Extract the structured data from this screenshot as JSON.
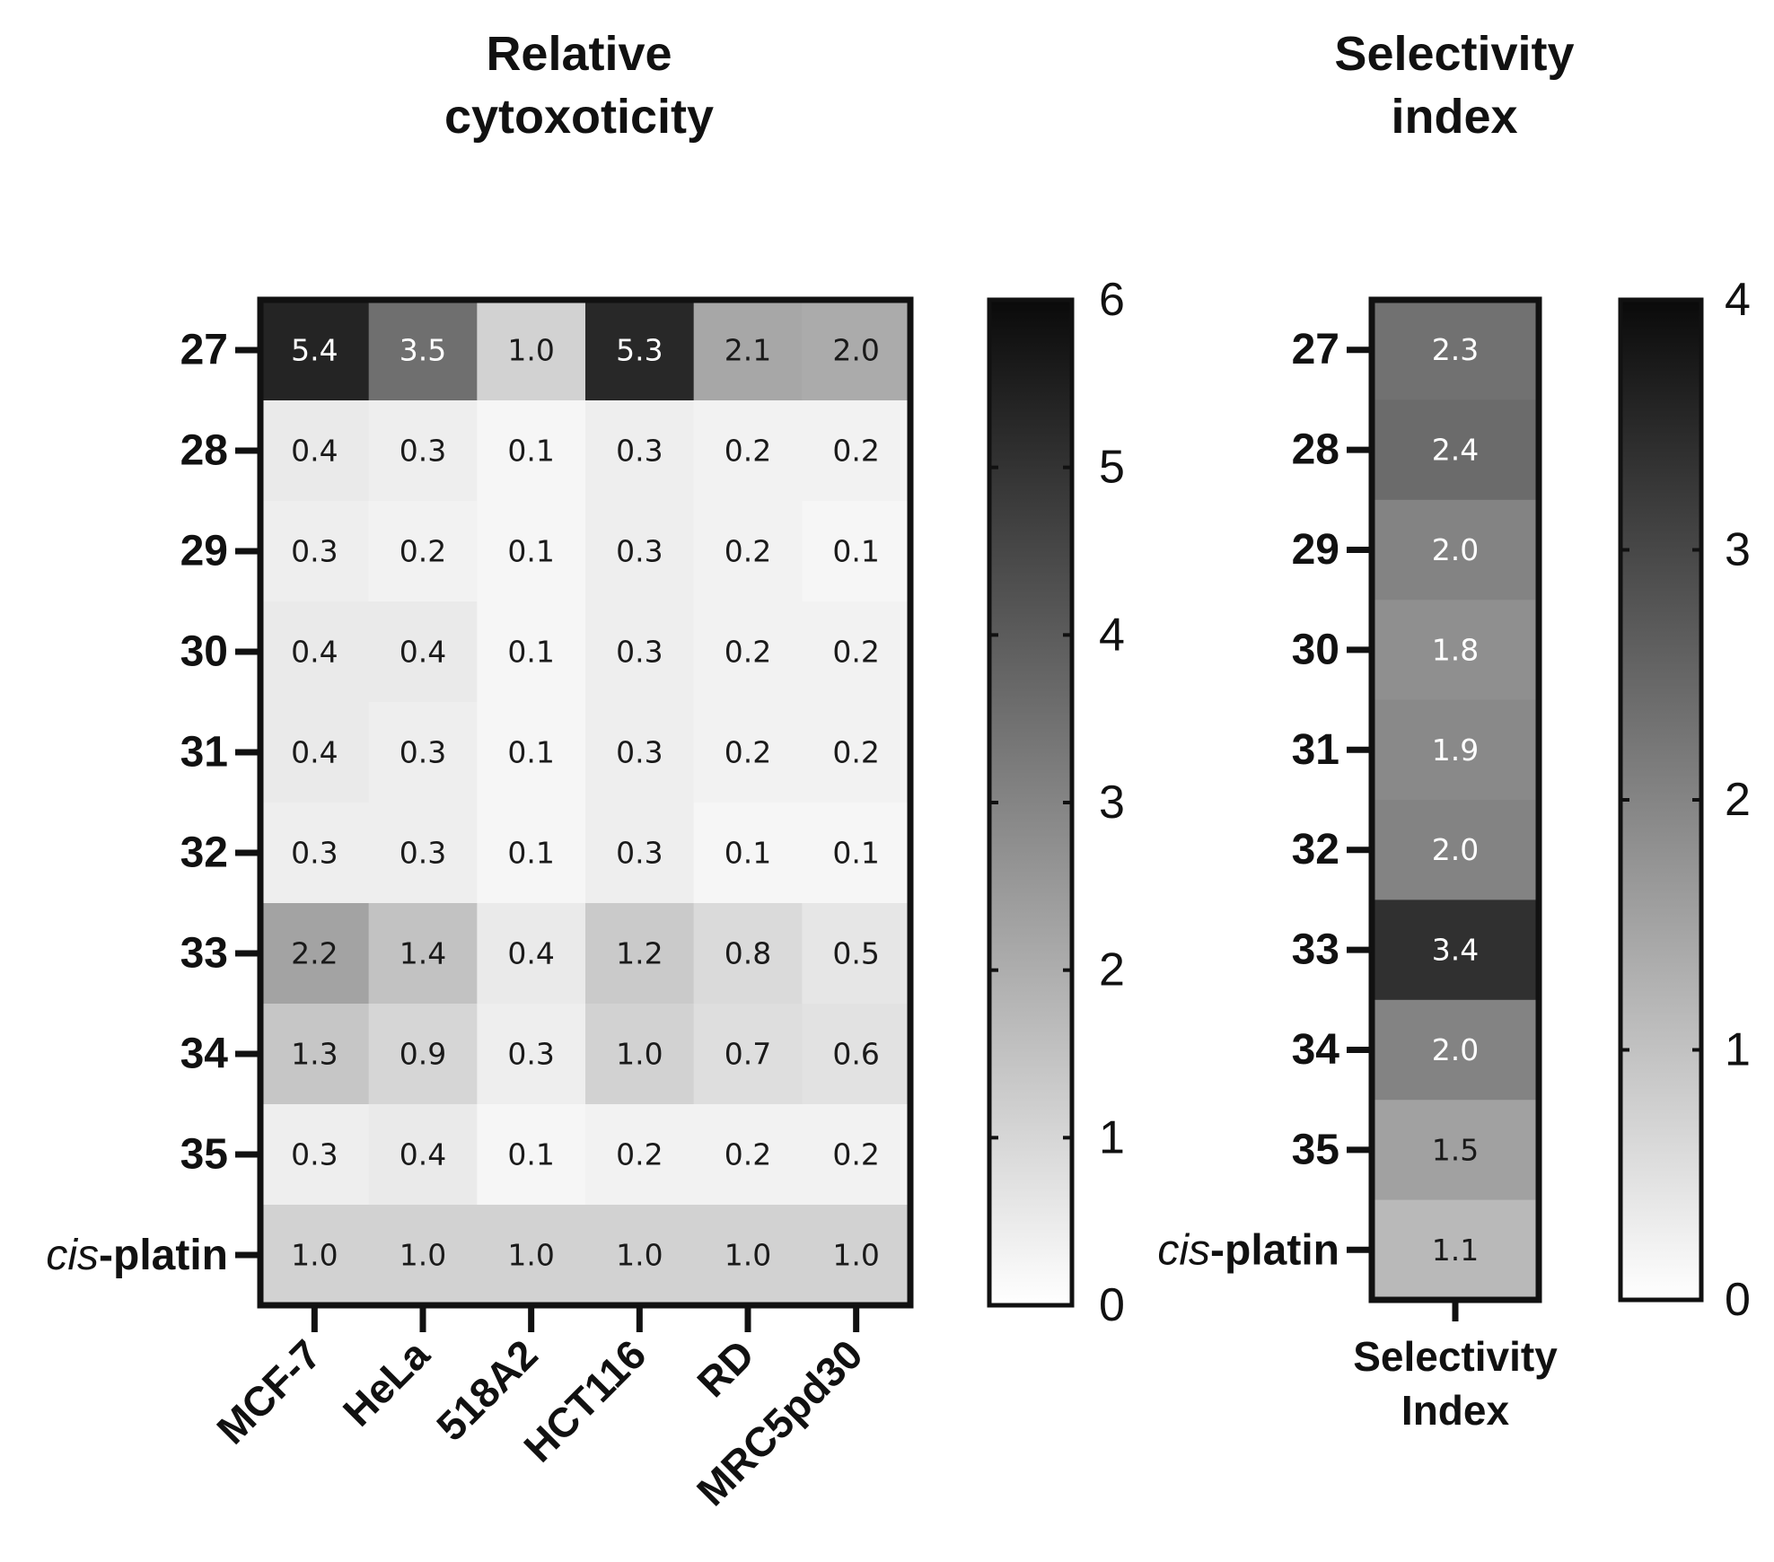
{
  "chart_data": [
    {
      "type": "heatmap",
      "title_lines": [
        "Relative",
        "cytoxoticity"
      ],
      "rows": [
        "27",
        "28",
        "29",
        "30",
        "31",
        "32",
        "33",
        "34",
        "35",
        "cis-platin"
      ],
      "row_label_cis_italic": "cis",
      "row_label_cis_rest": "-platin",
      "columns": [
        "MCF-7",
        "HeLa",
        "518A2",
        "HCT116",
        "RD",
        "MRC5pd30"
      ],
      "values": [
        [
          5.4,
          3.5,
          1.0,
          5.3,
          2.1,
          2.0
        ],
        [
          0.4,
          0.3,
          0.1,
          0.3,
          0.2,
          0.2
        ],
        [
          0.3,
          0.2,
          0.1,
          0.3,
          0.2,
          0.1
        ],
        [
          0.4,
          0.4,
          0.1,
          0.3,
          0.2,
          0.2
        ],
        [
          0.4,
          0.3,
          0.1,
          0.3,
          0.2,
          0.2
        ],
        [
          0.3,
          0.3,
          0.1,
          0.3,
          0.1,
          0.1
        ],
        [
          2.2,
          1.4,
          0.4,
          1.2,
          0.8,
          0.5
        ],
        [
          1.3,
          0.9,
          0.3,
          1.0,
          0.7,
          0.6
        ],
        [
          0.3,
          0.4,
          0.1,
          0.2,
          0.2,
          0.2
        ],
        [
          1.0,
          1.0,
          1.0,
          1.0,
          1.0,
          1.0
        ]
      ],
      "colorbar": {
        "min": 0,
        "max": 6,
        "ticks": [
          "0",
          "1",
          "2",
          "3",
          "4",
          "5",
          "6"
        ],
        "low_color": "#ffffff",
        "high_color": "#0a0a0a"
      }
    },
    {
      "type": "heatmap",
      "title_lines": [
        "Selectivity",
        "index"
      ],
      "rows": [
        "27",
        "28",
        "29",
        "30",
        "31",
        "32",
        "33",
        "34",
        "35",
        "cis-platin"
      ],
      "row_label_cis_italic": "cis",
      "row_label_cis_rest": "-platin",
      "column_label_lines": [
        "Selectivity",
        "Index"
      ],
      "values": [
        2.3,
        2.4,
        2.0,
        1.8,
        1.9,
        2.0,
        3.4,
        2.0,
        1.5,
        1.1
      ],
      "colorbar": {
        "min": 0,
        "max": 4,
        "ticks": [
          "0",
          "1",
          "2",
          "3",
          "4"
        ],
        "low_color": "#ffffff",
        "high_color": "#0a0a0a"
      }
    }
  ]
}
